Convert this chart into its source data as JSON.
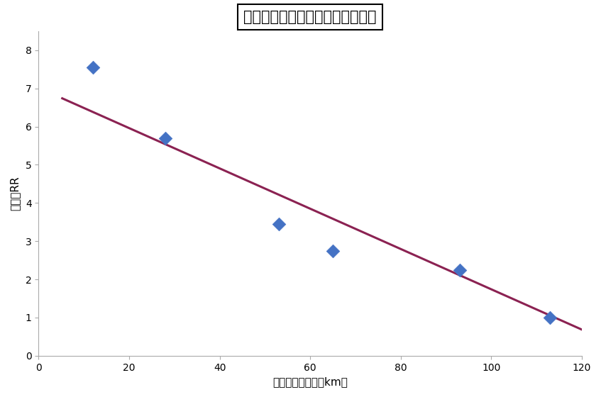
{
  "title": "原発からの距離とがん相対リスク",
  "xlabel": "原発からの距離（km）",
  "ylabel": "人月・RR",
  "scatter_x": [
    12,
    28,
    53,
    65,
    93,
    113
  ],
  "scatter_y": [
    7.55,
    5.7,
    3.45,
    2.75,
    2.25,
    1.0
  ],
  "marker_color": "#4472C4",
  "marker_size": 10,
  "trend_x": [
    5,
    122
  ],
  "trend_y": [
    6.75,
    0.58
  ],
  "trend_color": "#8B2252",
  "trend_linewidth": 2.2,
  "xlim": [
    0,
    120
  ],
  "ylim": [
    0,
    8.5
  ],
  "xticks": [
    0,
    20,
    40,
    60,
    80,
    100,
    120
  ],
  "yticks": [
    0,
    1,
    2,
    3,
    4,
    5,
    6,
    7,
    8
  ],
  "background_color": "#FFFFFF",
  "plot_bg_color": "#FFFFFF",
  "title_fontsize": 15,
  "axis_label_fontsize": 11,
  "tick_fontsize": 10,
  "title_box": true
}
